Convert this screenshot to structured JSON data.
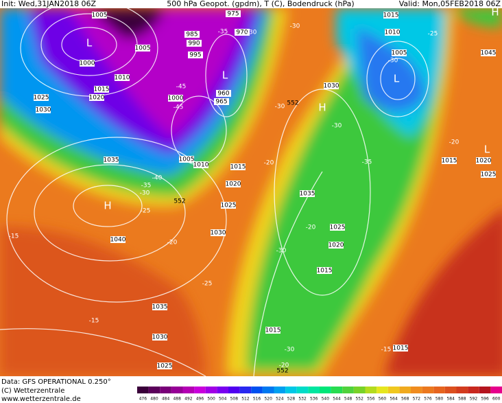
{
  "header": {
    "init": "Init: Wed,31JAN2018 06Z",
    "title": "500 hPa Geopot. (gpdm), T (C), Bodendruck (hPa)",
    "valid": "Valid: Mon,05FEB2018 06Z"
  },
  "footer": {
    "data": "Data: GFS OPERATIONAL 0.250°",
    "copyright": "(C) Wetterzentrale",
    "url": "www.wetterzentrale.de"
  },
  "colorbar": {
    "values": [
      476,
      480,
      484,
      488,
      492,
      496,
      500,
      504,
      508,
      512,
      516,
      520,
      524,
      528,
      532,
      536,
      540,
      544,
      548,
      552,
      556,
      560,
      564,
      568,
      572,
      576,
      580,
      584,
      588,
      592,
      596,
      600
    ],
    "colors": [
      "#3a003a",
      "#5a005a",
      "#780078",
      "#960096",
      "#b400b4",
      "#c800dc",
      "#a000e6",
      "#7800f0",
      "#5000f0",
      "#2828f0",
      "#0050f0",
      "#0078f0",
      "#00a0f0",
      "#00c8e6",
      "#00dcc8",
      "#00e6a0",
      "#00e678",
      "#28dc50",
      "#50d23c",
      "#78d228",
      "#b4dc1e",
      "#e6e61e",
      "#f0c81e",
      "#f0aa1e",
      "#f08c1e",
      "#eb781e",
      "#e6641e",
      "#dc501e",
      "#d23c1e",
      "#c8281e",
      "#b4141e",
      "#e6008c"
    ]
  },
  "isobar_labels": [
    "1005",
    "975",
    "1015",
    "1010",
    "1005",
    "1045",
    "1000",
    "1005",
    "985",
    "990",
    "995",
    "970",
    "1010",
    "1015",
    "1020",
    "1025",
    "1030",
    "960",
    "965",
    "1000",
    "1030",
    "1035",
    "1015",
    "1020",
    "1025",
    "1030",
    "1035",
    "1025",
    "1020",
    "1015",
    "1040",
    "1035",
    "1030",
    "1025",
    "1015",
    "1015",
    "1015",
    "1020",
    "1025",
    "1010",
    "1005"
  ],
  "temperature_labels": [
    "-45",
    "-45",
    "-35",
    "-30",
    "-30",
    "-30",
    "-30",
    "-35",
    "-20",
    "-25",
    "-30",
    "-40",
    "-35",
    "-30",
    "-25",
    "-20",
    "-15",
    "-25",
    "-15",
    "-20",
    "-30",
    "-15",
    "-30",
    "-20",
    "-20"
  ],
  "pressure_centers": [
    "L",
    "L",
    "L",
    "H",
    "H",
    "L",
    "H"
  ],
  "geopotential_labels": [
    "552",
    "552",
    "552"
  ]
}
